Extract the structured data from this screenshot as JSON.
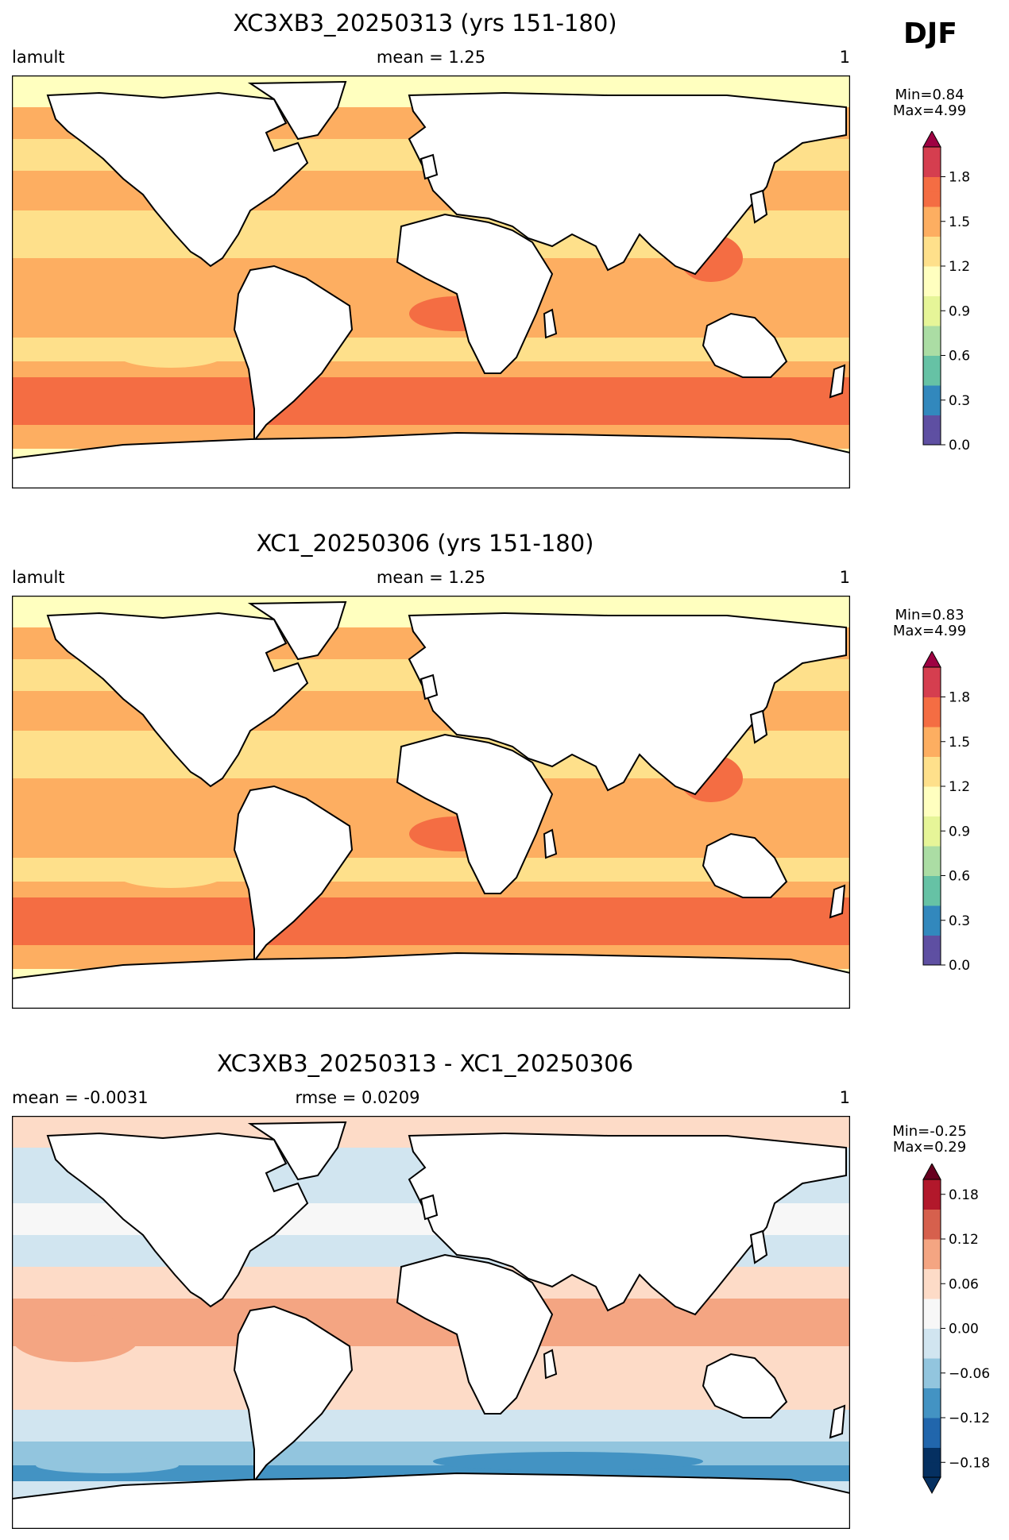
{
  "season": "DJF",
  "colors": {
    "land": "#ffffff",
    "coast": "#000000",
    "abs_scale": [
      "#5e4fa2",
      "#3288bd",
      "#66c2a5",
      "#abdda4",
      "#e6f598",
      "#ffffbf",
      "#fee08b",
      "#fdae61",
      "#f46d43",
      "#d53e4f",
      "#9e0142"
    ],
    "diff_scale": [
      "#053061",
      "#2166ac",
      "#4393c3",
      "#92c5de",
      "#d1e5f0",
      "#f7f7f7",
      "#fddbc7",
      "#f4a582",
      "#d6604d",
      "#b2182b",
      "#67001f"
    ]
  },
  "panels": [
    {
      "title": "XC3XB3_20250313 (yrs 151-180)",
      "left": "lamult",
      "center": "mean = 1.25",
      "right": "1",
      "minmax_min": "Min=0.84",
      "minmax_max": "Max=4.99",
      "colorbar": {
        "kind": "abs",
        "vmin": 0.0,
        "vmax": 2.0,
        "ticks": [
          0.0,
          0.3,
          0.6,
          0.9,
          1.2,
          1.5,
          1.8
        ],
        "tick_labels": [
          "0.0",
          "0.3",
          "0.6",
          "0.9",
          "1.2",
          "1.5",
          "1.8"
        ],
        "extend": "max"
      }
    },
    {
      "title": "XC1_20250306 (yrs 151-180)",
      "left": "lamult",
      "center": "mean = 1.25",
      "right": "1",
      "minmax_min": "Min=0.83",
      "minmax_max": "Max=4.99",
      "colorbar": {
        "kind": "abs",
        "vmin": 0.0,
        "vmax": 2.0,
        "ticks": [
          0.0,
          0.3,
          0.6,
          0.9,
          1.2,
          1.5,
          1.8
        ],
        "tick_labels": [
          "0.0",
          "0.3",
          "0.6",
          "0.9",
          "1.2",
          "1.5",
          "1.8"
        ],
        "extend": "max"
      }
    },
    {
      "title": "XC3XB3_20250313 - XC1_20250306",
      "left": "mean = -0.0031",
      "center": "rmse = 0.0209",
      "right": "1",
      "minmax_min": "Min=-0.25",
      "minmax_max": "Max=0.29",
      "colorbar": {
        "kind": "diff",
        "vmin": -0.2,
        "vmax": 0.2,
        "ticks": [
          -0.18,
          -0.12,
          -0.06,
          0.0,
          0.06,
          0.12,
          0.18
        ],
        "tick_labels": [
          "−0.18",
          "−0.12",
          "−0.06",
          "0.00",
          "0.06",
          "0.12",
          "0.18"
        ],
        "extend": "both"
      }
    }
  ],
  "chart_data": [
    {
      "type": "heatmap",
      "title": "XC3XB3_20250313 (yrs 151-180)",
      "variable": "lamult",
      "mean": 1.25,
      "min": 0.84,
      "max": 4.99,
      "zlim": [
        0.0,
        2.0
      ]
    },
    {
      "type": "heatmap",
      "title": "XC1_20250306 (yrs 151-180)",
      "variable": "lamult",
      "mean": 1.25,
      "min": 0.83,
      "max": 4.99,
      "zlim": [
        0.0,
        2.0
      ]
    },
    {
      "type": "heatmap",
      "title": "XC3XB3_20250313 - XC1_20250306",
      "mean": -0.0031,
      "rmse": 0.0209,
      "min": -0.25,
      "max": 0.29,
      "zlim": [
        -0.2,
        0.2
      ]
    }
  ]
}
